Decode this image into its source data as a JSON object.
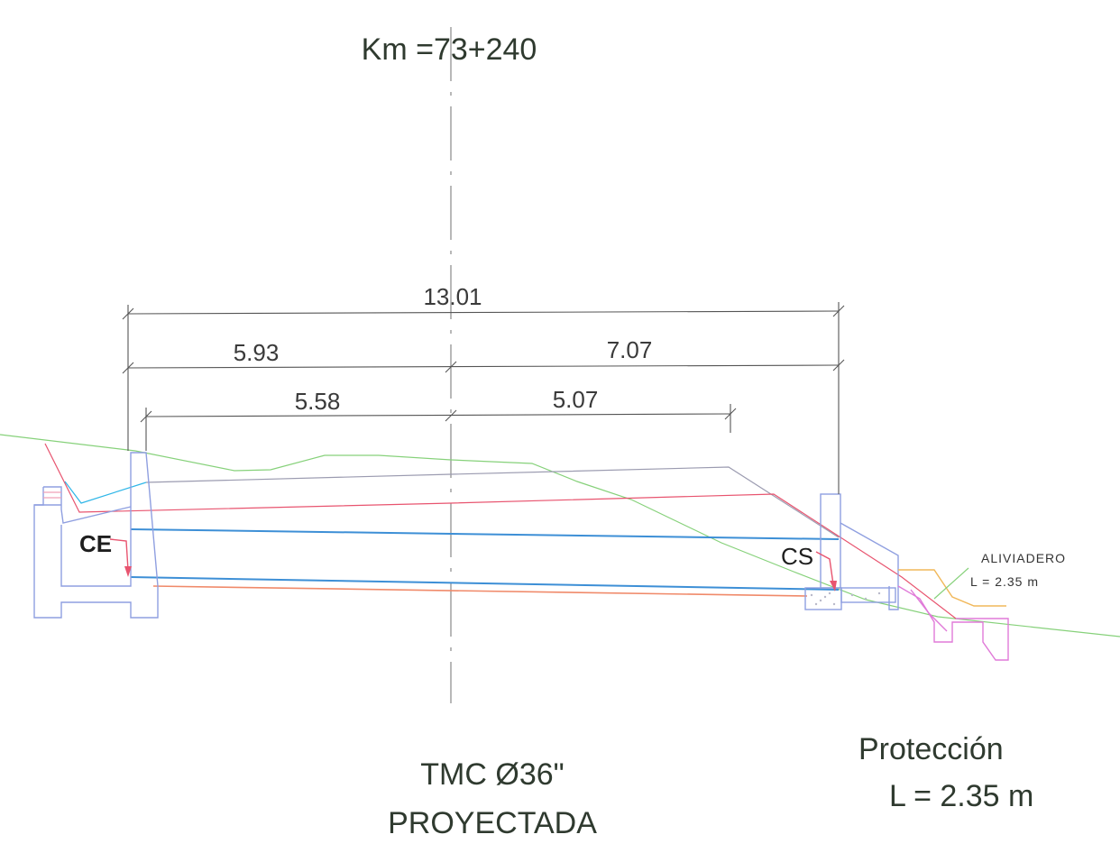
{
  "header": {
    "station": "Km =73+240"
  },
  "dimensions": {
    "total": "13.01",
    "left_upper": "5.93",
    "right_upper": "7.07",
    "left_lower": "5.58",
    "right_lower": "5.07"
  },
  "structures": {
    "inlet": "CE",
    "outlet": "CS",
    "spillway_title": "ALIVIADERO",
    "spillway_length": "L  =  2.35  m"
  },
  "pipe": {
    "line1": "TMC Ø36\"",
    "line2": "PROYECTADA"
  },
  "protection": {
    "title": "Protección",
    "length": "L = 2.35 m"
  },
  "colors": {
    "terrain": "#86d17a",
    "pipe_top": "#3d8fd6",
    "pipe_bottom": "#3d8fd6",
    "red_line": "#e8546f",
    "orange_line": "#f08a6a",
    "gray_line": "#9b9bb0",
    "structure": "#8f9fe0",
    "outlet_pink": "#e07ad8",
    "outlet_orange": "#f1b85a",
    "dimension": "#555555"
  }
}
